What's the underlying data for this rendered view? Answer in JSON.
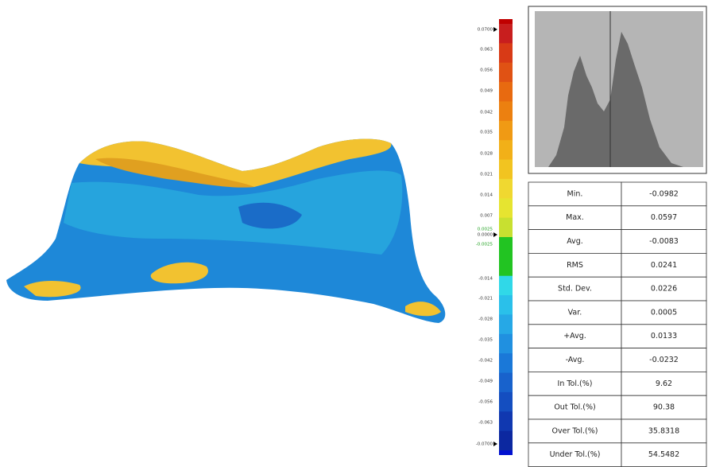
{
  "scale": {
    "labels": [
      "0.0700",
      "0.063",
      "0.056",
      "0.049",
      "0.042",
      "0.035",
      "0.028",
      "0.021",
      "0.014",
      "0.007",
      "0.0025",
      "0.0000",
      "-0.0025",
      "-0.014",
      "-0.021",
      "-0.028",
      "-0.035",
      "-0.042",
      "-0.049",
      "-0.056",
      "-0.063",
      "-0.0700"
    ]
  },
  "table": {
    "rows": [
      [
        "Min.",
        "-0.0982"
      ],
      [
        "Max.",
        "0.0597"
      ],
      [
        "Avg.",
        "-0.0083"
      ],
      [
        "RMS",
        "0.0241"
      ],
      [
        "Std. Dev.",
        "0.0226"
      ],
      [
        "Var.",
        "0.0005"
      ],
      [
        "+Avg.",
        "0.0133"
      ],
      [
        "-Avg.",
        "-0.0232"
      ],
      [
        "In Tol.(%)",
        "9.62"
      ],
      [
        "Out Tol.(%)",
        "90.38"
      ],
      [
        "Over Tol.(%)",
        "35.8318"
      ],
      [
        "Under Tol.(%)",
        "54.5482"
      ]
    ]
  }
}
